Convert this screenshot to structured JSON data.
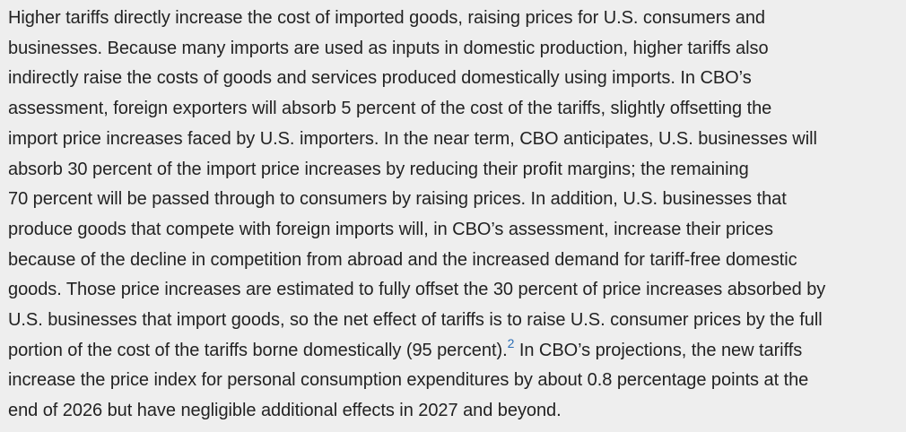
{
  "paragraph": {
    "lines": [
      "Higher tariffs directly increase the cost of imported goods, raising prices for U.S. consumers and",
      "businesses. Because many imports are used as inputs in domestic production, higher tariffs also",
      "indirectly raise the costs of goods and services produced domestically using imports. In CBO’s",
      "assessment, foreign exporters will absorb 5 percent of the cost of the tariffs, slightly offsetting the",
      "import price increases faced by U.S. importers. In the near term, CBO anticipates, U.S. businesses will",
      "absorb 30 percent of the import price increases by reducing their profit margins; the remaining",
      "70 percent will be passed through to consumers by raising prices. In addition, U.S. businesses that",
      "produce goods that compete with foreign imports will, in CBO’s assessment, increase their prices",
      "because of the decline in competition from abroad and the increased demand for tariff-free domestic",
      "goods. Those price increases are estimated to fully offset the 30 percent of price increases absorbed by",
      "U.S. businesses that import goods, so the net effect of tariffs is to raise U.S. consumer prices by the full"
    ],
    "line12_before": "portion of the cost of the tariffs borne domestically (95 percent).",
    "footnote": "2",
    "line12_after": " In CBO’s projections, the new tariffs",
    "line13": "increase the price index for personal consumption expenditures by about 0.8 percentage points at the",
    "line14": "end of 2026 but have negligible additional effects in 2027 and beyond."
  }
}
